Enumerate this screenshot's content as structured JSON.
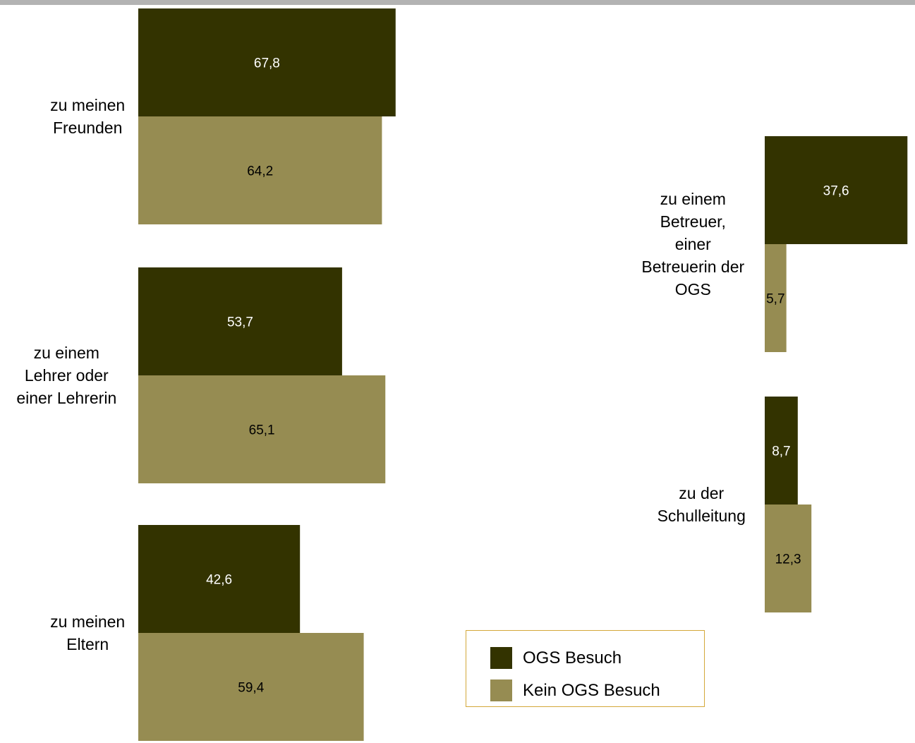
{
  "colors": {
    "ogs": "#333300",
    "kein_ogs": "#968c52",
    "legend_border": "#d4a83a",
    "top_rule": "#b3b3b3"
  },
  "legend": {
    "items": [
      {
        "label": "OGS Besuch",
        "color": "#333300"
      },
      {
        "label": "Kein OGS Besuch",
        "color": "#968c52"
      }
    ]
  },
  "chart_data": {
    "type": "bar",
    "orientation": "horizontal",
    "categories": [
      [
        "zu meinen",
        "Freunden"
      ],
      [
        "zu einem",
        "Lehrer oder",
        "einer Lehrerin"
      ],
      [
        "zu meinen",
        "Eltern"
      ],
      [
        "zu einem",
        "Betreuer,",
        "einer",
        "Betreuerin der",
        "OGS"
      ],
      [
        "zu der",
        "Schulleitung"
      ]
    ],
    "series": [
      {
        "name": "OGS Besuch",
        "values": [
          67.8,
          53.7,
          42.6,
          37.6,
          8.7
        ],
        "labels": [
          "67,8",
          "53,7",
          "42,6",
          "37,6",
          "8,7"
        ]
      },
      {
        "name": "Kein OGS Besuch",
        "values": [
          64.2,
          65.1,
          59.4,
          5.7,
          12.3
        ],
        "labels": [
          "64,2",
          "65,1",
          "59,4",
          "5,7",
          "12,3"
        ]
      }
    ],
    "title": "",
    "xlabel": "",
    "ylabel": "",
    "grid": false,
    "legend_position": "bottom-center"
  }
}
